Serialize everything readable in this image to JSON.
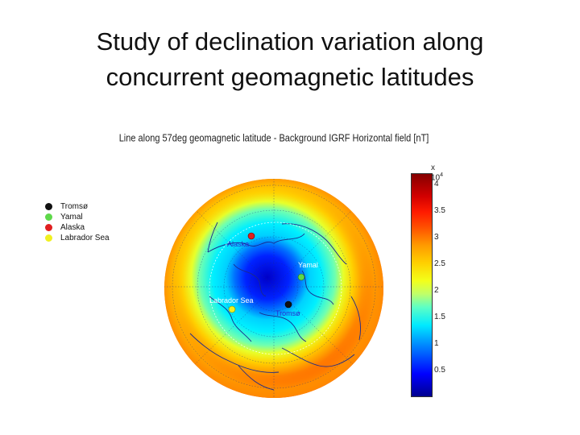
{
  "slide": {
    "title_line1": "Study of declination variation along",
    "title_line2": "concurrent geomagnetic latitudes"
  },
  "figure": {
    "title": "Line along 57deg geomagnetic latitude - Background IGRF Horizontal field [nT]"
  },
  "legend": {
    "items": [
      {
        "label": "Tromsø",
        "color": "#111111"
      },
      {
        "label": "Yamal",
        "color": "#5ed84a"
      },
      {
        "label": "Alaska",
        "color": "#e02020"
      },
      {
        "label": "Labrador Sea",
        "color": "#f0f020"
      }
    ]
  },
  "map_labels": {
    "alaska": "Alaska",
    "yamal": "Yamal",
    "labrador": "Labrador Sea",
    "tromso": "Tromsø"
  },
  "colorbar": {
    "exponent_base": "x 10",
    "exponent": "4",
    "ticks": [
      "4",
      "3.5",
      "3",
      "2.5",
      "2",
      "1.5",
      "1",
      "0.5"
    ],
    "colors": {
      "low": "#00008f",
      "mid": "#00eaff",
      "high": "#850000"
    }
  }
}
